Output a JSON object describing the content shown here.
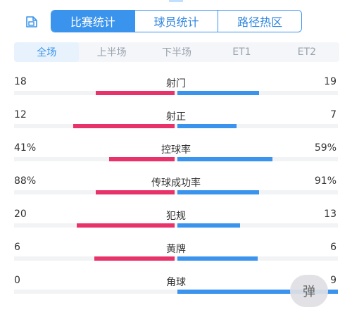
{
  "tabs": [
    {
      "label": "比赛统计",
      "active": true
    },
    {
      "label": "球员统计",
      "active": false
    },
    {
      "label": "路径热区",
      "active": false
    }
  ],
  "periods": [
    {
      "label": "全场",
      "active": true
    },
    {
      "label": "上半场",
      "active": false
    },
    {
      "label": "下半场",
      "active": false
    },
    {
      "label": "ET1",
      "active": false
    },
    {
      "label": "ET2",
      "active": false
    }
  ],
  "stats": [
    {
      "name": "射门",
      "left": "18",
      "right": "19",
      "left_fraction": 0.49,
      "right_fraction": 0.51
    },
    {
      "name": "射正",
      "left": "12",
      "right": "7",
      "left_fraction": 0.63,
      "right_fraction": 0.37
    },
    {
      "name": "控球率",
      "left": "41%",
      "right": "59%",
      "left_fraction": 0.41,
      "right_fraction": 0.59
    },
    {
      "name": "传球成功率",
      "left": "88%",
      "right": "91%",
      "left_fraction": 0.49,
      "right_fraction": 0.51
    },
    {
      "name": "犯规",
      "left": "20",
      "right": "13",
      "left_fraction": 0.61,
      "right_fraction": 0.39
    },
    {
      "name": "黄牌",
      "left": "6",
      "right": "6",
      "left_fraction": 0.5,
      "right_fraction": 0.5
    },
    {
      "name": "角球",
      "left": "0",
      "right": "9",
      "left_fraction": 0.0,
      "right_fraction": 1.0
    }
  ],
  "danmaku_label": "弹",
  "colors": {
    "home": "#e8336a",
    "away": "#3a93ec",
    "accent": "#3a93ec"
  },
  "icons": {
    "export": "export-image-icon"
  }
}
